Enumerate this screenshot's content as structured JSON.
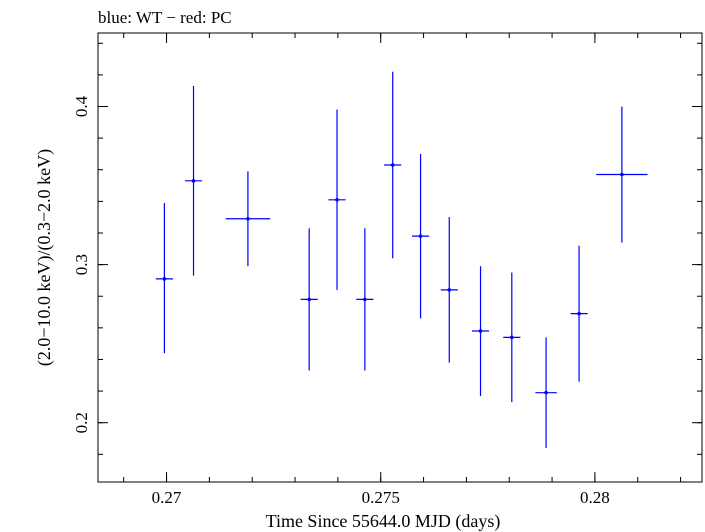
{
  "chart_data": {
    "type": "scatter",
    "title": "blue: WT − red: PC",
    "xlabel": "Time Since 55644.0 MJD (days)",
    "ylabel": "(2.0−10.0 keV)/(0.3−2.0 keV)",
    "xlim": [
      0.2684,
      0.2825
    ],
    "ylim": [
      0.1625,
      0.4465
    ],
    "xticks": [
      {
        "value": 0.27,
        "label": "0.27"
      },
      {
        "value": 0.275,
        "label": "0.275"
      },
      {
        "value": 0.28,
        "label": "0.28"
      }
    ],
    "yticks": [
      {
        "value": 0.2,
        "label": "0.2"
      },
      {
        "value": 0.3,
        "label": "0.3"
      },
      {
        "value": 0.4,
        "label": "0.4"
      }
    ],
    "x_minor_step": 0.001,
    "y_minor_step": 0.02,
    "grid": false,
    "series": [
      {
        "color": "#0000ff",
        "points": [
          {
            "x": 0.26995,
            "y": 0.291,
            "xerr": 0.0002,
            "yerr_low": 0.047,
            "yerr_high": 0.048
          },
          {
            "x": 0.27063,
            "y": 0.353,
            "xerr": 0.0002,
            "yerr_low": 0.06,
            "yerr_high": 0.06
          },
          {
            "x": 0.2719,
            "y": 0.329,
            "xerr": 0.00052,
            "yerr_low": 0.03,
            "yerr_high": 0.03
          },
          {
            "x": 0.27333,
            "y": 0.278,
            "xerr": 0.0002,
            "yerr_low": 0.045,
            "yerr_high": 0.045
          },
          {
            "x": 0.27398,
            "y": 0.341,
            "xerr": 0.0002,
            "yerr_low": 0.057,
            "yerr_high": 0.057
          },
          {
            "x": 0.27463,
            "y": 0.278,
            "xerr": 0.0002,
            "yerr_low": 0.045,
            "yerr_high": 0.045
          },
          {
            "x": 0.27528,
            "y": 0.363,
            "xerr": 0.0002,
            "yerr_low": 0.059,
            "yerr_high": 0.059
          },
          {
            "x": 0.27593,
            "y": 0.318,
            "xerr": 0.0002,
            "yerr_low": 0.052,
            "yerr_high": 0.052
          },
          {
            "x": 0.2766,
            "y": 0.284,
            "xerr": 0.0002,
            "yerr_low": 0.046,
            "yerr_high": 0.046
          },
          {
            "x": 0.27733,
            "y": 0.258,
            "xerr": 0.0002,
            "yerr_low": 0.041,
            "yerr_high": 0.041
          },
          {
            "x": 0.27806,
            "y": 0.254,
            "xerr": 0.0002,
            "yerr_low": 0.041,
            "yerr_high": 0.041
          },
          {
            "x": 0.27886,
            "y": 0.219,
            "xerr": 0.00025,
            "yerr_low": 0.035,
            "yerr_high": 0.035
          },
          {
            "x": 0.27963,
            "y": 0.269,
            "xerr": 0.0002,
            "yerr_low": 0.043,
            "yerr_high": 0.043
          },
          {
            "x": 0.28063,
            "y": 0.357,
            "xerr": 0.0006,
            "yerr_low": 0.043,
            "yerr_high": 0.043
          }
        ]
      }
    ]
  }
}
